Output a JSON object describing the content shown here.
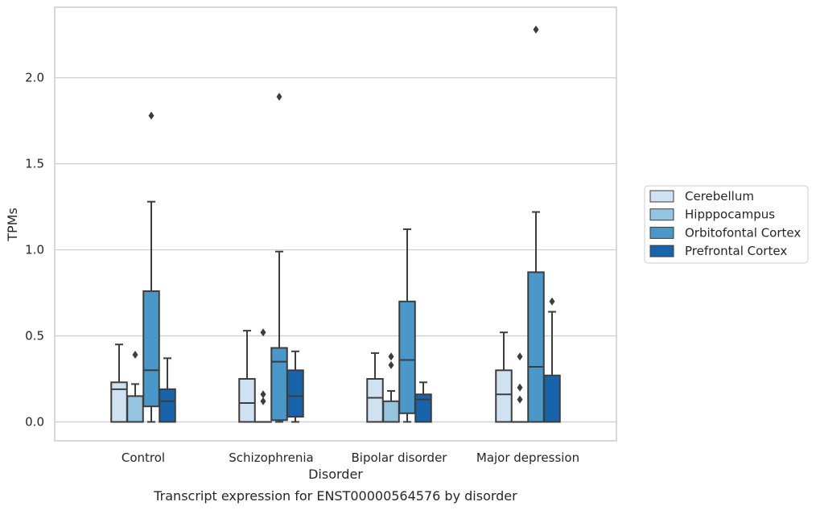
{
  "caption": "Transcript expression for ENST00000564576 by disorder",
  "chart_data": {
    "type": "box",
    "title": "",
    "xlabel": "Disorder",
    "ylabel": "TPMs",
    "ylim": [
      -0.11,
      2.41
    ],
    "yticks": [
      0.0,
      0.5,
      1.0,
      1.5,
      2.0
    ],
    "ytick_labels": [
      "0.0",
      "0.5",
      "1.0",
      "1.5",
      "2.0"
    ],
    "grid": "horizontal",
    "legend_position": "right",
    "categories": [
      "Control",
      "Schizophrenia",
      "Bipolar disorder",
      "Major depression"
    ],
    "colors": {
      "Cerebellum": "#d0e1f2",
      "Hipppocampus": "#94c4df",
      "Orbitofontal Cortex": "#4a98c9",
      "Prefrontal Cortex": "#1764ab",
      "edge": "#3d3d3d",
      "grid": "#cccccc"
    },
    "series": [
      {
        "name": "Cerebellum",
        "boxes": [
          {
            "whislo": 0.0,
            "q1": 0.0,
            "med": 0.19,
            "q3": 0.23,
            "whishi": 0.45,
            "fliers": []
          },
          {
            "whislo": 0.0,
            "q1": 0.0,
            "med": 0.11,
            "q3": 0.25,
            "whishi": 0.53,
            "fliers": []
          },
          {
            "whislo": 0.0,
            "q1": 0.0,
            "med": 0.14,
            "q3": 0.25,
            "whishi": 0.4,
            "fliers": []
          },
          {
            "whislo": 0.0,
            "q1": 0.0,
            "med": 0.16,
            "q3": 0.3,
            "whishi": 0.52,
            "fliers": []
          }
        ]
      },
      {
        "name": "Hipppocampus",
        "boxes": [
          {
            "whislo": 0.0,
            "q1": 0.0,
            "med": 0.0,
            "q3": 0.15,
            "whishi": 0.22,
            "fliers": [
              0.39
            ]
          },
          {
            "whislo": 0.0,
            "q1": 0.0,
            "med": 0.0,
            "q3": 0.0,
            "whishi": 0.0,
            "fliers": [
              0.12,
              0.16,
              0.52
            ]
          },
          {
            "whislo": 0.0,
            "q1": 0.0,
            "med": 0.0,
            "q3": 0.12,
            "whishi": 0.18,
            "fliers": [
              0.33,
              0.38
            ]
          },
          {
            "whislo": 0.0,
            "q1": 0.0,
            "med": 0.0,
            "q3": 0.0,
            "whishi": 0.0,
            "fliers": [
              0.13,
              0.2,
              0.38
            ]
          }
        ]
      },
      {
        "name": "Orbitofontal Cortex",
        "boxes": [
          {
            "whislo": 0.0,
            "q1": 0.09,
            "med": 0.3,
            "q3": 0.76,
            "whishi": 1.28,
            "fliers": [
              1.78
            ]
          },
          {
            "whislo": 0.0,
            "q1": 0.01,
            "med": 0.35,
            "q3": 0.43,
            "whishi": 0.99,
            "fliers": [
              1.89
            ]
          },
          {
            "whislo": 0.0,
            "q1": 0.05,
            "med": 0.36,
            "q3": 0.7,
            "whishi": 1.12,
            "fliers": []
          },
          {
            "whislo": 0.0,
            "q1": 0.0,
            "med": 0.32,
            "q3": 0.87,
            "whishi": 1.22,
            "fliers": [
              2.28
            ]
          }
        ]
      },
      {
        "name": "Prefrontal Cortex",
        "boxes": [
          {
            "whislo": 0.0,
            "q1": 0.0,
            "med": 0.12,
            "q3": 0.19,
            "whishi": 0.37,
            "fliers": []
          },
          {
            "whislo": 0.0,
            "q1": 0.03,
            "med": 0.15,
            "q3": 0.3,
            "whishi": 0.41,
            "fliers": []
          },
          {
            "whislo": 0.0,
            "q1": 0.0,
            "med": 0.13,
            "q3": 0.16,
            "whishi": 0.23,
            "fliers": []
          },
          {
            "whislo": 0.0,
            "q1": 0.0,
            "med": 0.0,
            "q3": 0.27,
            "whishi": 0.64,
            "fliers": [
              0.7
            ]
          }
        ]
      }
    ]
  }
}
